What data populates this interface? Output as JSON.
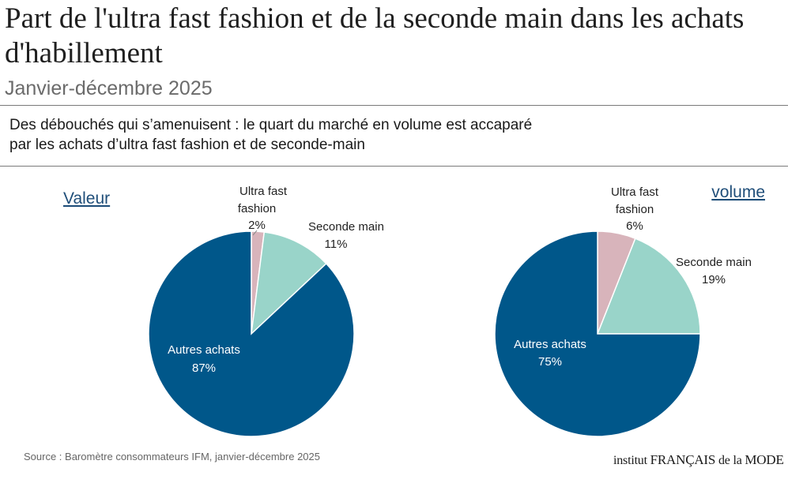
{
  "header": {
    "title": "Part de l'ultra fast fashion et de la seconde main dans les achats d'habillement",
    "subtitle": "Janvier-décembre 2025"
  },
  "description": {
    "line1": "Des débouchés qui s’amenuisent : le quart du marché en volume est accaparé",
    "line2": "par les achats d’ultra fast fashion et de seconde-main"
  },
  "chart_data": [
    {
      "type": "pie",
      "title": "Valeur",
      "categories": [
        "Ultra fast fashion",
        "Seconde main",
        "Autres achats"
      ],
      "values": [
        2,
        11,
        87
      ],
      "labels": [
        "2%",
        "11%",
        "87%"
      ],
      "colors": [
        "#d8b4bb",
        "#99d4c9",
        "#00578a"
      ]
    },
    {
      "type": "pie",
      "title": "volume",
      "categories": [
        "Ultra fast fashion",
        "Seconde main",
        "Autres achats"
      ],
      "values": [
        6,
        19,
        75
      ],
      "labels": [
        "6%",
        "19%",
        "75%"
      ],
      "colors": [
        "#d8b4bb",
        "#99d4c9",
        "#00578a"
      ]
    }
  ],
  "footer": {
    "source": "Source : Baromètre consommateurs IFM, janvier-décembre 2025",
    "logo_part1": "institut ",
    "logo_caps": "FRANÇAIS",
    "logo_part2": " de la ",
    "logo_caps2": "MODE"
  }
}
